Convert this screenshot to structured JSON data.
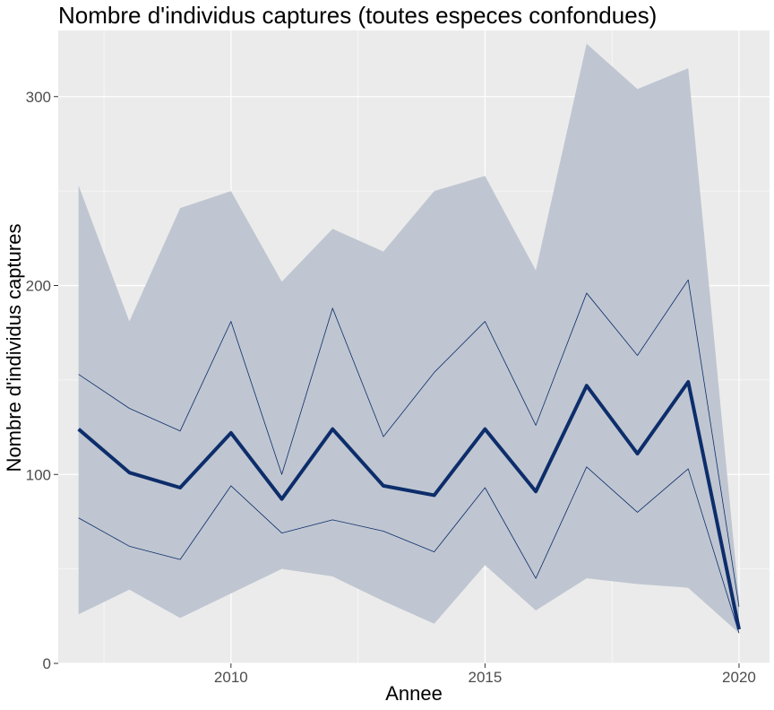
{
  "chart_data": {
    "type": "line",
    "title": "Nombre d'individus captures (toutes especes confondues)",
    "xlabel": "Annee",
    "ylabel": "Nombre d'individus captures",
    "xlim": [
      2006.6,
      2020.6
    ],
    "ylim": [
      0,
      335
    ],
    "x_ticks": [
      2010,
      2015,
      2020
    ],
    "y_ticks": [
      0,
      100,
      200,
      300
    ],
    "grid": true,
    "legend": "none",
    "x": [
      2007,
      2008,
      2009,
      2010,
      2011,
      2012,
      2013,
      2014,
      2015,
      2016,
      2017,
      2018,
      2019,
      2020
    ],
    "series": [
      {
        "role": "band",
        "lower": [
          26,
          39,
          24,
          37,
          50,
          46,
          33,
          21,
          52,
          28,
          45,
          42,
          40,
          16
        ],
        "upper": [
          253,
          181,
          241,
          250,
          202,
          230,
          218,
          250,
          258,
          208,
          328,
          304,
          315,
          34
        ],
        "color": "#bfc6d1"
      },
      {
        "role": "upper-line",
        "values": [
          153,
          135,
          123,
          181,
          100,
          188,
          120,
          154,
          181,
          126,
          196,
          163,
          203,
          30
        ],
        "color": "#0d2d6b"
      },
      {
        "role": "mean",
        "values": [
          124,
          101,
          93,
          122,
          87,
          124,
          94,
          89,
          124,
          91,
          147,
          111,
          149,
          18
        ],
        "color": "#0d2d6b"
      },
      {
        "role": "lower-line",
        "values": [
          77,
          62,
          55,
          94,
          69,
          76,
          70,
          59,
          93,
          45,
          104,
          80,
          103,
          16
        ],
        "color": "#0d2d6b"
      }
    ]
  }
}
